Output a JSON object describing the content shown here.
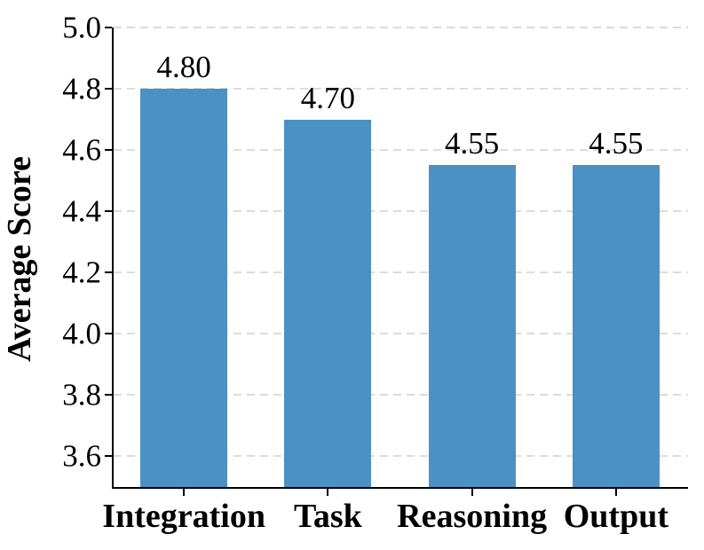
{
  "chart_data": {
    "type": "bar",
    "categories": [
      "Integration",
      "Task",
      "Reasoning",
      "Output"
    ],
    "values": [
      4.8,
      4.7,
      4.55,
      4.55
    ],
    "bar_value_labels": [
      "4.80",
      "4.70",
      "4.55",
      "4.55"
    ],
    "title": "",
    "xlabel": "",
    "ylabel": "Average Score",
    "ylim": [
      3.5,
      5.0
    ],
    "yticks": [
      3.6,
      3.8,
      4.0,
      4.2,
      4.4,
      4.6,
      4.8,
      5.0
    ],
    "ytick_labels": [
      "3.6",
      "3.8",
      "4.0",
      "4.2",
      "4.4",
      "4.6",
      "4.8",
      "5.0"
    ],
    "grid": "horizontal-dashed",
    "legend": "none",
    "colors": {
      "bar_fill": "#4B91C4",
      "grid_line": "#dcdcdc",
      "axis_line": "#000000",
      "text": "#000000",
      "background": "#ffffff"
    }
  }
}
